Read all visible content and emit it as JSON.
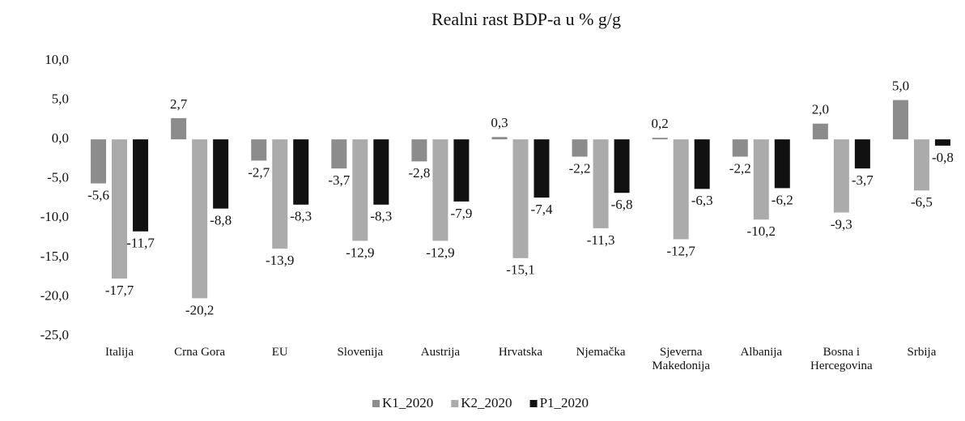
{
  "chart_data": {
    "type": "bar",
    "title": "Realni rast BDP-a u % g/g",
    "categories": [
      "Italija",
      "Crna Gora",
      "EU",
      "Slovenija",
      "Austrija",
      "Hrvatska",
      "Njemačka",
      "Sjeverna Makedonija",
      "Albanija",
      "Bosna i Hercegovina",
      "Srbija"
    ],
    "series": [
      {
        "name": "K1_2020",
        "color": "#8c8c8c",
        "values": [
          -5.6,
          2.7,
          -2.7,
          -3.7,
          -2.8,
          0.3,
          -2.2,
          0.2,
          -2.2,
          2.0,
          5.0
        ],
        "value_labels": [
          "-5,6",
          "2,7",
          "-2,7",
          "-3,7",
          "-2,8",
          "0,3",
          "-2,2",
          "0,2",
          "-2,2",
          "2,0",
          "5,0"
        ]
      },
      {
        "name": "K2_2020",
        "color": "#ababab",
        "values": [
          -17.7,
          -20.2,
          -13.9,
          -12.9,
          -12.9,
          -15.1,
          -11.3,
          -12.7,
          -10.2,
          -9.3,
          -6.5
        ],
        "value_labels": [
          "-17,7",
          "-20,2",
          "-13,9",
          "-12,9",
          "-12,9",
          "-15,1",
          "-11,3",
          "-12,7",
          "-10,2",
          "-9,3",
          "-6,5"
        ]
      },
      {
        "name": "P1_2020",
        "color": "#111111",
        "values": [
          -11.7,
          -8.8,
          -8.3,
          -8.3,
          -7.9,
          -7.4,
          -6.8,
          -6.3,
          -6.2,
          -3.7,
          -0.8
        ],
        "value_labels": [
          "-11,7",
          "-8,8",
          "-8,3",
          "-8,3",
          "-7,9",
          "-7,4",
          "-6,8",
          "-6,3",
          "-6,2",
          "-3,7",
          "-0,8"
        ]
      }
    ],
    "ylim": [
      -25,
      10
    ],
    "yticks": [
      {
        "value": -25,
        "label": "-25,0"
      },
      {
        "value": -20,
        "label": "-20,0"
      },
      {
        "value": -15,
        "label": "-15,0"
      },
      {
        "value": -10,
        "label": "-10,0"
      },
      {
        "value": -5,
        "label": "-5,0"
      },
      {
        "value": 0,
        "label": "0,0"
      },
      {
        "value": 5,
        "label": "5,0"
      },
      {
        "value": 10,
        "label": "10,0"
      }
    ],
    "grid": false,
    "legend": "bottom"
  }
}
